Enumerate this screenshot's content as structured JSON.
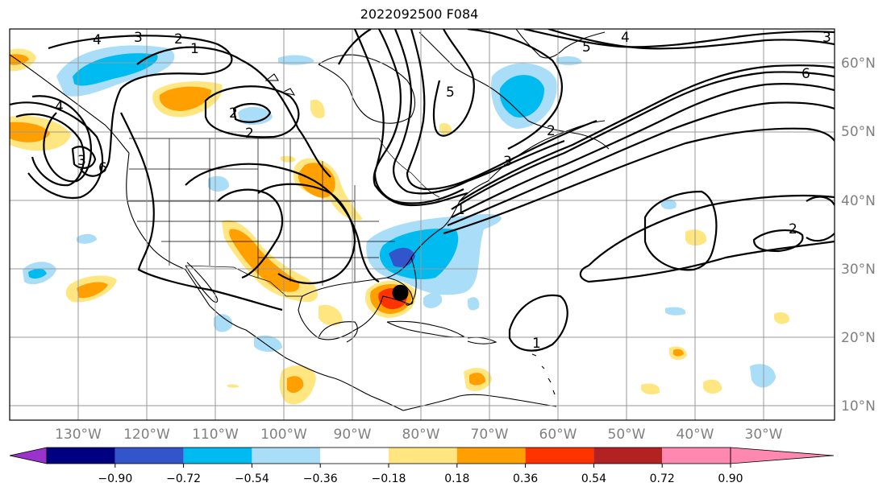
{
  "title": "2022092500 F084",
  "latitude_labels": [
    "60°N",
    "50°N",
    "40°N",
    "30°N",
    "20°N",
    "10°N"
  ],
  "longitude_labels": [
    "130°W",
    "120°W",
    "110°W",
    "100°W",
    "90°W",
    "80°W",
    "70°W",
    "60°W",
    "50°W",
    "40°W",
    "30°W"
  ],
  "colorbar": {
    "ticks": [
      "−0.90",
      "−0.72",
      "−0.54",
      "−0.36",
      "−0.18",
      "0.18",
      "0.36",
      "0.54",
      "0.72",
      "0.90"
    ],
    "colors": [
      "#9933cc",
      "#000080",
      "#3355cc",
      "#00bbf0",
      "#aaddf8",
      "#ffffff",
      "#ffe680",
      "#ffa000",
      "#ff3300",
      "#b22222",
      "#ff88b0"
    ]
  },
  "contour_labels": [
    "4",
    "3",
    "2",
    "1",
    "2",
    "2",
    "3",
    "4",
    "5",
    "6",
    "5",
    "4",
    "6",
    "3",
    "2",
    "1",
    "1",
    "2",
    "3"
  ],
  "storm_marker": {
    "lat": 26.5,
    "lon": -83.0,
    "color": "#000000"
  }
}
